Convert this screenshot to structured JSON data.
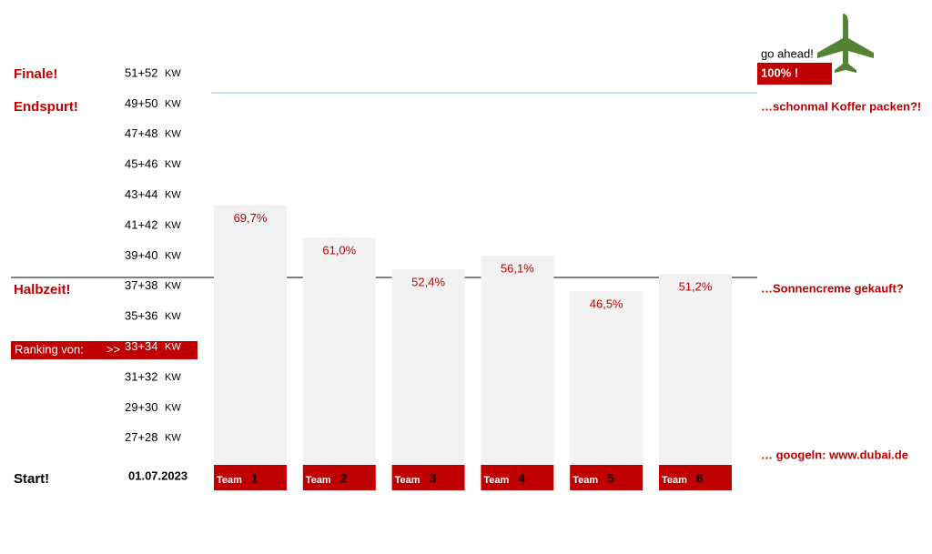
{
  "chart_data": {
    "type": "bar",
    "categories": [
      "1",
      "2",
      "3",
      "4",
      "5",
      "6"
    ],
    "category_label": "Team",
    "values": [
      69.7,
      61.0,
      52.4,
      56.1,
      46.5,
      51.2
    ],
    "value_labels": [
      "69,7%",
      "61,0%",
      "52,4%",
      "56,1%",
      "46,5%",
      "51,2%"
    ],
    "color": "#f2f2f2",
    "label_color": "#c00000",
    "ylim": [
      0,
      100
    ],
    "week_labels": [
      "51+52",
      "49+50",
      "47+48",
      "45+46",
      "43+44",
      "41+42",
      "39+40",
      "37+38",
      "35+36",
      "33+34",
      "31+32",
      "29+30",
      "27+28"
    ],
    "week_unit": "KW",
    "stages": {
      "finale": "Finale!",
      "endspurt": "Endspurt!",
      "halbzeit": "Halbzeit!",
      "start": "Start!"
    },
    "ranking_label": "Ranking von:",
    "ranking_arrow": ">>",
    "start_date": "01.07.2023",
    "go_ahead": "go ahead!",
    "target_badge": "100% !",
    "notes": [
      "…schonmal Koffer packen?!",
      "…Sonnencreme gekauft?",
      "… googeln:  www.dubai.de"
    ]
  }
}
